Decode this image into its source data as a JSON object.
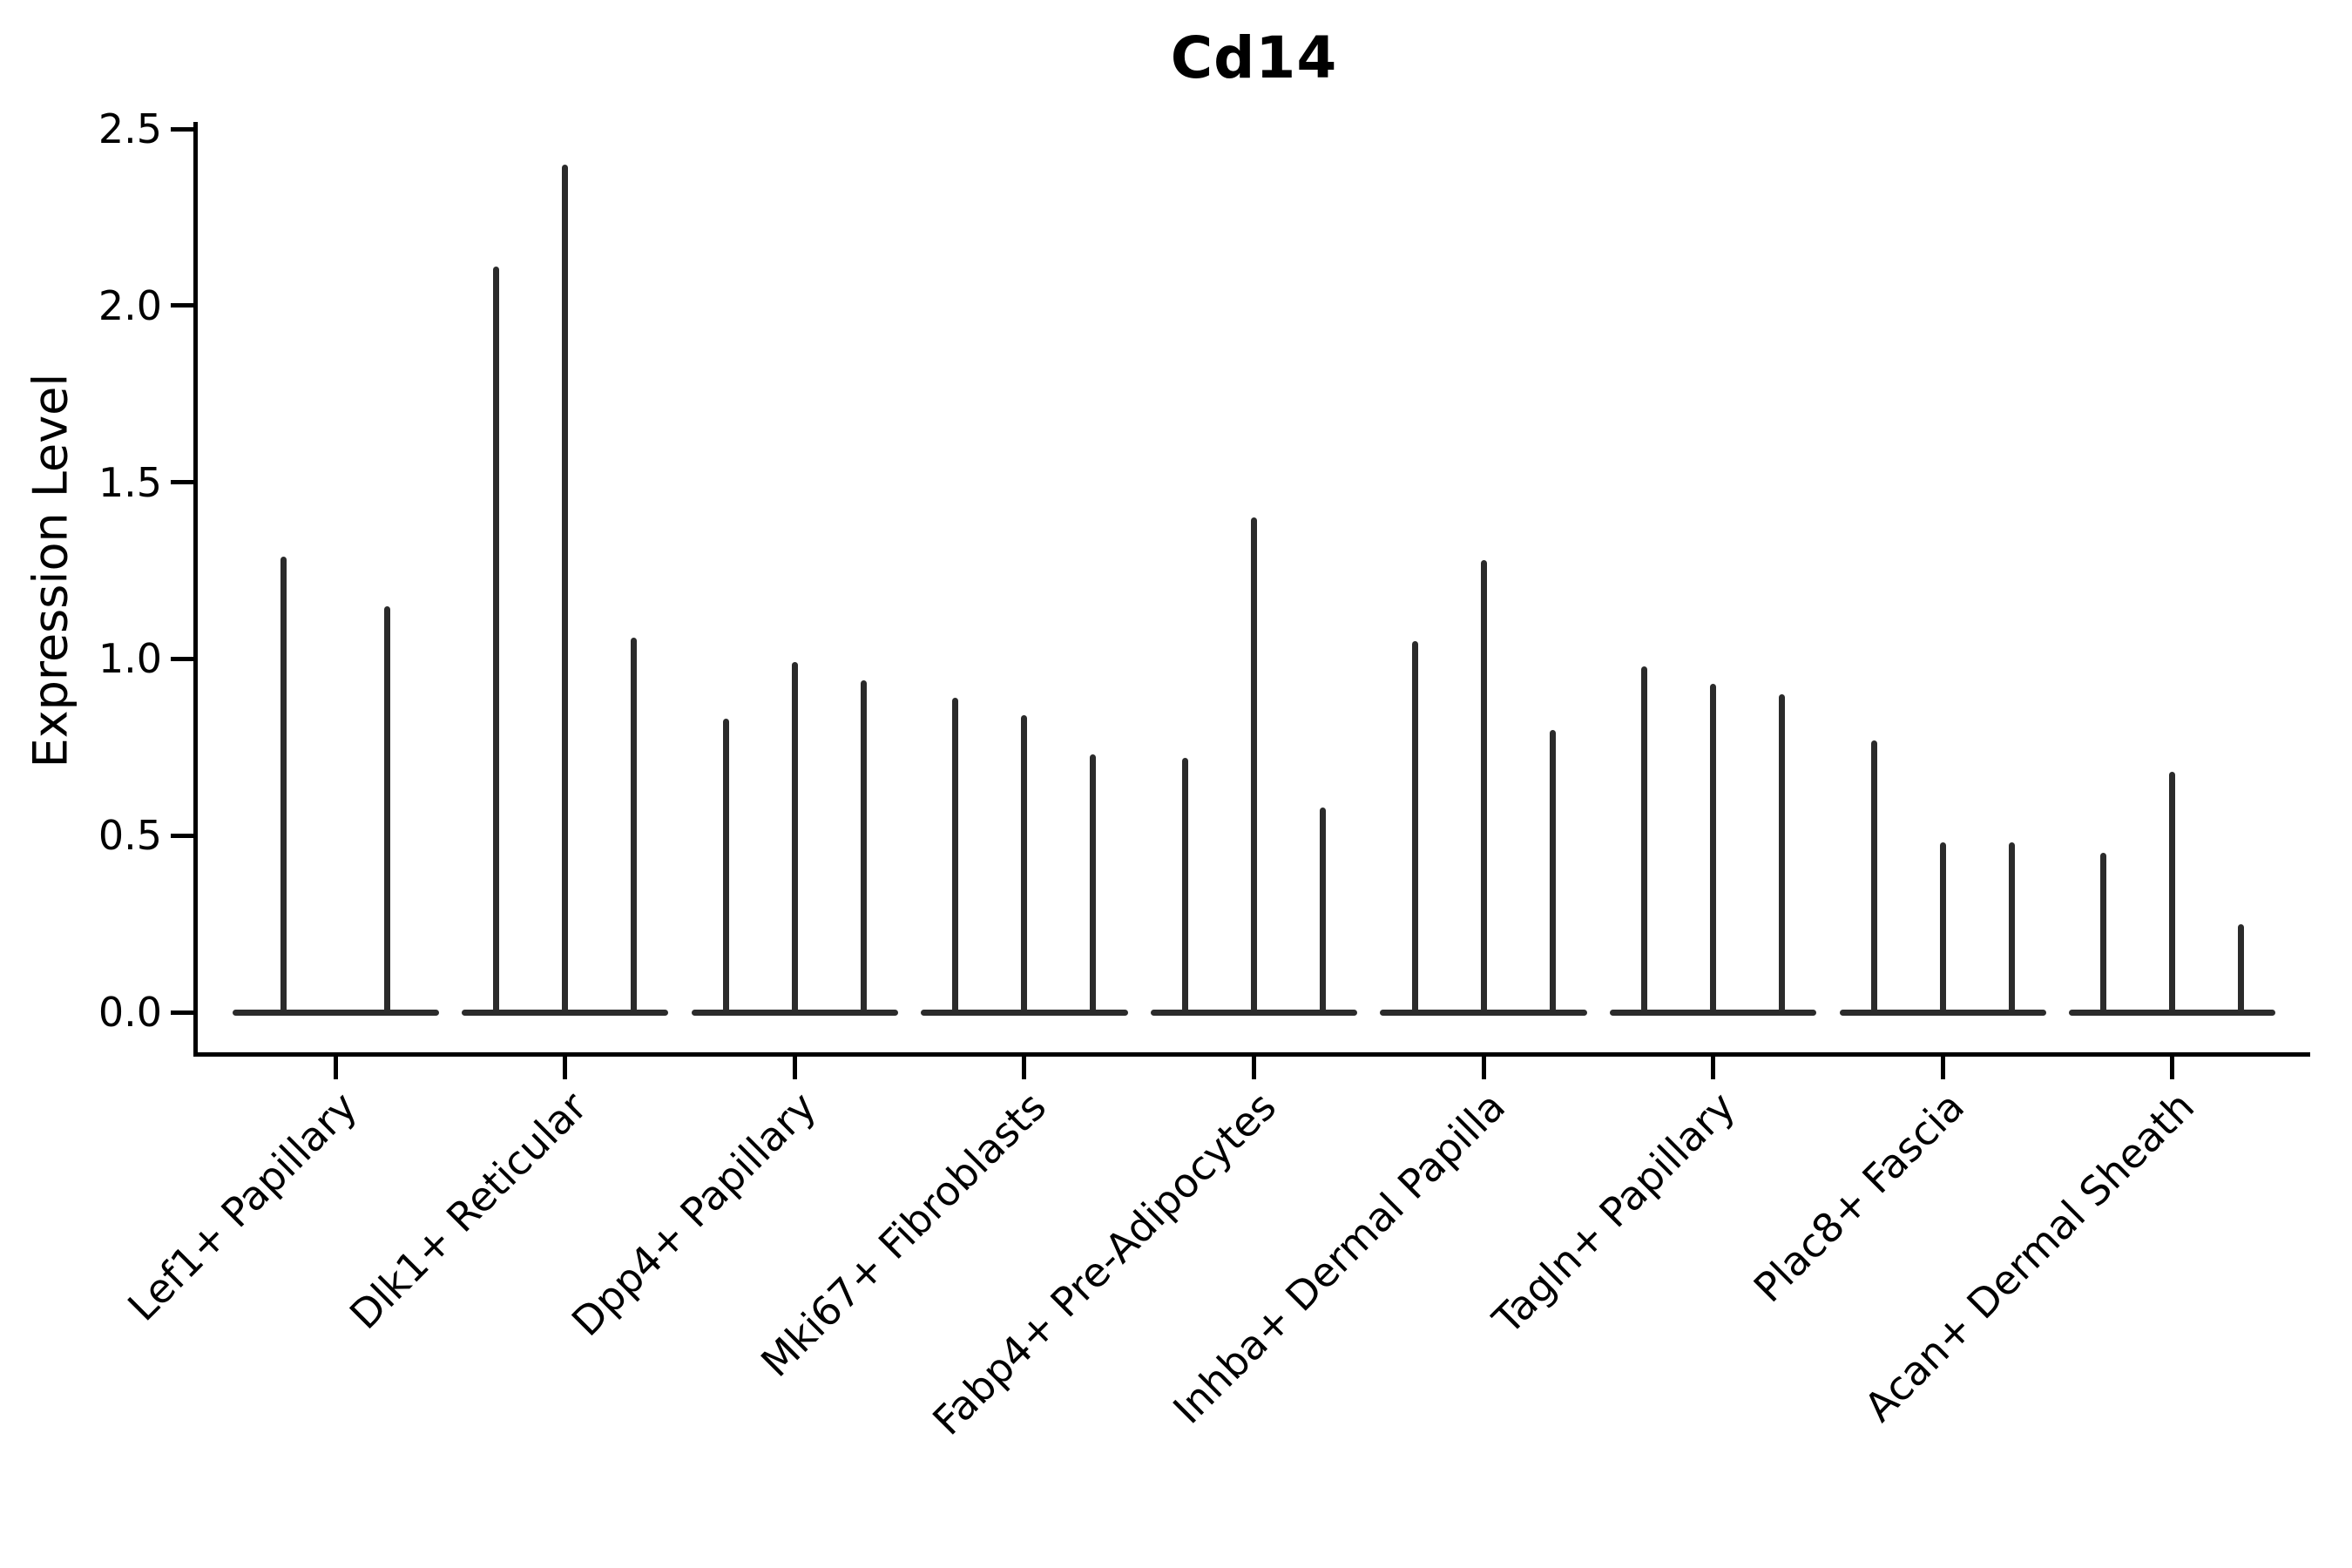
{
  "chart_data": {
    "type": "violin",
    "title": "Cd14",
    "xlabel": "",
    "ylabel": "Expression Level",
    "ylim": [
      0,
      2.5
    ],
    "ytick_labels": [
      "0.0",
      "0.5",
      "1.0",
      "1.5",
      "2.0",
      "2.5"
    ],
    "ytick_values": [
      0.0,
      0.5,
      1.0,
      1.5,
      2.0,
      2.5
    ],
    "grid": "off",
    "legend": "none",
    "categories": [
      "Lef1+ Papillary",
      "Dlk1+ Reticular",
      "Dpp4+ Papillary",
      "Mki67+ Fibroblasts",
      "Fabp4+ Pre-Adipocytes",
      "Inhba+ Dermal Papilla",
      "Tagln+ Papillary",
      "Plac8+ Fascia",
      "Acan+ Dermal Sheath"
    ],
    "groups": [
      {
        "category": "Lef1+ Papillary",
        "violin_maxima": [
          1.29,
          1.15
        ]
      },
      {
        "category": "Dlk1+ Reticular",
        "violin_maxima": [
          2.11,
          2.4,
          1.06
        ]
      },
      {
        "category": "Dpp4+ Papillary",
        "violin_maxima": [
          0.83,
          0.99,
          0.94
        ]
      },
      {
        "category": "Mki67+ Fibroblasts",
        "violin_maxima": [
          0.89,
          0.84,
          0.73
        ]
      },
      {
        "category": "Fabp4+ Pre-Adipocytes",
        "violin_maxima": [
          0.72,
          1.4,
          0.58
        ]
      },
      {
        "category": "Inhba+ Dermal Papilla",
        "violin_maxima": [
          1.05,
          1.28,
          0.8
        ]
      },
      {
        "category": "Tagln+ Papillary",
        "violin_maxima": [
          0.98,
          0.93,
          0.9
        ]
      },
      {
        "category": "Plac8+ Fascia",
        "violin_maxima": [
          0.77,
          0.48,
          0.48
        ]
      },
      {
        "category": "Acan+ Dermal Sheath",
        "violin_maxima": [
          0.45,
          0.68,
          0.25
        ]
      }
    ],
    "violin_description": "Each category shows thin violins collapsed to near-zero width: a flat base at expression 0 with a thin vertical spike reaching the listed maximum expression value.",
    "colors": {
      "violin_line": "#2b2b2b",
      "axis": "#000000",
      "text": "#000000",
      "background": "#ffffff"
    }
  }
}
